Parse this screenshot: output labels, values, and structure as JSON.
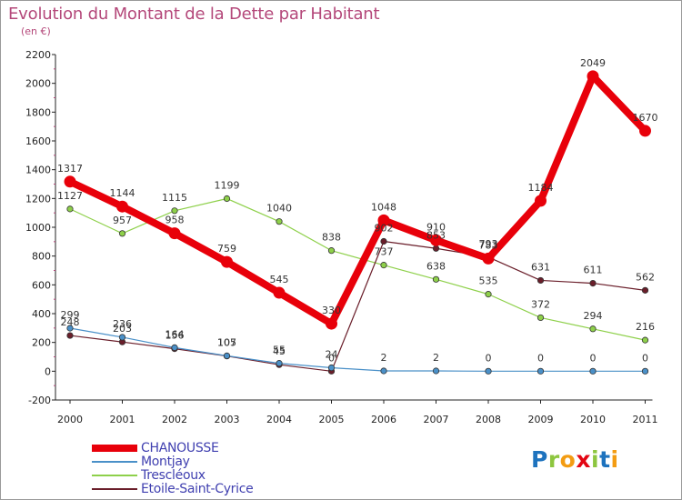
{
  "title": "Evolution du Montant de la Dette par Habitant",
  "subtitle": "(en €)",
  "logo": {
    "letters": [
      "P",
      "r",
      "o",
      "x",
      "i",
      "t",
      "i"
    ],
    "colors": [
      "#1e73be",
      "#8dc63f",
      "#f39c12",
      "#e30613",
      "#8dc63f",
      "#1e73be",
      "#f39c12"
    ]
  },
  "chart_data": {
    "type": "line",
    "title": "Evolution du Montant de la Dette par Habitant",
    "ylabel": "(en €)",
    "xlabel": "",
    "x": [
      "2000",
      "2001",
      "2002",
      "2003",
      "2004",
      "2005",
      "2006",
      "2007",
      "2008",
      "2009",
      "2010",
      "2011"
    ],
    "ylim": [
      -200,
      2200
    ],
    "yticks": [
      "-200",
      "0",
      "200",
      "400",
      "600",
      "800",
      "1000",
      "1200",
      "1400",
      "1600",
      "1800",
      "2000",
      "2200"
    ],
    "grid": false,
    "legend_position": "bottom-left",
    "series": [
      {
        "name": "CHANOUSSE",
        "color": "#e8000a",
        "values": [
          1317,
          1144,
          958,
          759,
          545,
          330,
          1048,
          910,
          783,
          1184,
          2049,
          1670
        ],
        "labels": [
          "1317",
          "1144",
          "958",
          "759",
          "545",
          "330",
          "1048",
          "910",
          "783",
          "1184",
          "2049",
          "1670"
        ]
      },
      {
        "name": "Montjay",
        "color": "#4a90c8",
        "values": [
          299,
          236,
          164,
          107,
          55,
          24,
          2,
          2,
          0,
          0,
          0,
          0
        ],
        "labels": [
          "299",
          "236",
          "164",
          "107",
          "55",
          "24",
          "2",
          "2",
          "0",
          "0",
          "0",
          "0"
        ]
      },
      {
        "name": "Trescléoux",
        "color": "#8ed04a",
        "values": [
          1127,
          957,
          1115,
          1199,
          1040,
          838,
          737,
          638,
          535,
          372,
          294,
          216
        ],
        "labels": [
          "1127",
          "957",
          "1115",
          "1199",
          "1040",
          "838",
          "737",
          "638",
          "535",
          "372",
          "294",
          "216"
        ]
      },
      {
        "name": "Etoile-Saint-Cyrice",
        "color": "#6a1e2a",
        "values": [
          248,
          203,
          156,
          105,
          45,
          0,
          902,
          853,
          793,
          631,
          611,
          562
        ],
        "labels": [
          "248",
          "203",
          "156",
          "105",
          "45",
          "0",
          "902",
          "853",
          "793",
          "631",
          "611",
          "562"
        ]
      }
    ]
  }
}
